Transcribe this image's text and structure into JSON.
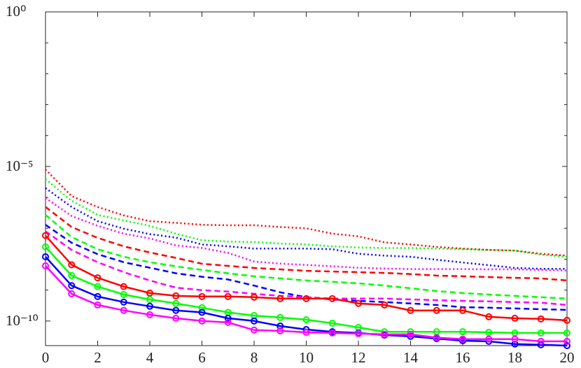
{
  "chart_data": {
    "type": "line",
    "scale_y": "log",
    "grid": false,
    "x": [
      0,
      1,
      2,
      3,
      4,
      5,
      6,
      7,
      8,
      9,
      10,
      11,
      12,
      13,
      14,
      15,
      16,
      17,
      18,
      19,
      20
    ],
    "xlim": [
      0,
      20
    ],
    "xticks": [
      0,
      2,
      4,
      6,
      8,
      10,
      12,
      14,
      16,
      18,
      20
    ],
    "ylim": [
      1.6e-11,
      1
    ],
    "yticks": [
      {
        "value": 1,
        "label": "10⁰"
      },
      {
        "value": 1e-05,
        "label": "10⁻⁵"
      },
      {
        "value": 1e-10,
        "label": "10⁻¹⁰"
      }
    ],
    "yminorticks": [
      0.1,
      0.01,
      0.001,
      0.0001,
      1e-06,
      1e-07,
      1e-08,
      1e-09
    ],
    "series": [
      {
        "color": "#ff0000",
        "style": "dotted",
        "values": [
          8e-06,
          1.1e-06,
          4.9e-07,
          2.6e-07,
          1.7e-07,
          1.5e-07,
          1.3e-07,
          1.25e-07,
          1.25e-07,
          1.1e-07,
          1e-07,
          6.7e-08,
          5.5e-08,
          3.5e-08,
          3e-08,
          2.5e-08,
          2.2e-08,
          2e-08,
          1.9e-08,
          1.5e-08,
          1.3e-08
        ]
      },
      {
        "color": "#00ff00",
        "style": "dotted",
        "values": [
          3.9e-06,
          7.8e-07,
          2.7e-07,
          1.8e-07,
          1.2e-07,
          6.7e-08,
          4.1e-08,
          3.7e-08,
          3.6e-08,
          3.2e-08,
          3e-08,
          2.6e-08,
          2.4e-08,
          2.3e-08,
          2.3e-08,
          2.2e-08,
          2.1e-08,
          2e-08,
          1.9e-08,
          1.4e-08,
          1.2e-08
        ]
      },
      {
        "color": "#0000ff",
        "style": "dotted",
        "values": [
          2e-06,
          4.9e-07,
          1.7e-07,
          9.7e-08,
          6.5e-08,
          5e-08,
          3e-08,
          2.6e-08,
          2.2e-08,
          2.2e-08,
          2.2e-08,
          2.1e-08,
          1.5e-08,
          1.3e-08,
          1.2e-08,
          9.6e-09,
          7.8e-09,
          6.4e-09,
          5.2e-09,
          4.9e-09,
          4.9e-09
        ]
      },
      {
        "color": "#ff00ff",
        "style": "dotted",
        "values": [
          9.6e-07,
          2.5e-07,
          1.2e-07,
          6.7e-08,
          4.7e-08,
          2.8e-08,
          2.3e-08,
          1.6e-08,
          8.4e-09,
          7.2e-09,
          6.5e-09,
          5.9e-09,
          5.3e-09,
          5e-09,
          4.8e-09,
          4.8e-09,
          4.8e-09,
          4.7e-09,
          4.7e-09,
          4.5e-09,
          4.3e-09
        ]
      },
      {
        "color": "#ff0000",
        "style": "dashed",
        "values": [
          4.9e-07,
          1.1e-07,
          4.9e-08,
          2.6e-08,
          1.65e-08,
          1.1e-08,
          7.1e-09,
          6.1e-09,
          5.2e-09,
          4.7e-09,
          4.2e-09,
          4e-09,
          3.8e-09,
          3.6e-09,
          3.3e-09,
          2.95e-09,
          2.8e-09,
          2.65e-09,
          2.5e-09,
          2.4e-09,
          2.05e-09
        ]
      },
      {
        "color": "#00ff00",
        "style": "dashed",
        "values": [
          2.7e-07,
          5.2e-08,
          2.1e-08,
          1.2e-08,
          8e-09,
          5.9e-09,
          4.5e-09,
          3.5e-09,
          2.8e-09,
          2.4e-09,
          2.05e-09,
          1.85e-09,
          1.65e-09,
          1.4e-09,
          1.15e-09,
          9.3e-10,
          8e-10,
          7.2e-10,
          6.5e-10,
          5.9e-10,
          5.3e-10
        ]
      },
      {
        "color": "#0000ff",
        "style": "dashed",
        "values": [
          1.3e-07,
          3.4e-08,
          1.45e-08,
          8e-09,
          5.3e-09,
          3.5e-09,
          2.7e-09,
          2.2e-09,
          1.4e-09,
          8.5e-10,
          5.9e-10,
          5e-10,
          4.5e-10,
          4.1e-10,
          3.7e-10,
          3.3e-10,
          2.8e-10,
          2.7e-10,
          2.55e-10,
          2.4e-10,
          2.3e-10
        ]
      },
      {
        "color": "#ff00ff",
        "style": "dashed",
        "values": [
          8e-08,
          2e-08,
          8e-09,
          3.8e-09,
          2.05e-09,
          1.2e-09,
          1e-09,
          9e-10,
          7.6e-10,
          6.5e-10,
          5.9e-10,
          5.3e-10,
          5.3e-10,
          5.3e-10,
          5e-10,
          4.7e-10,
          4.5e-10,
          4.3e-10,
          4.1e-10,
          3.9e-10,
          3.3e-10
        ]
      },
      {
        "color": "#ff0000",
        "style": "solid",
        "marker": "circle",
        "values": [
          5.8e-08,
          6.6e-09,
          2.5e-09,
          1.3e-09,
          8e-10,
          6.5e-10,
          6.2e-10,
          6.2e-10,
          5.9e-10,
          5.3e-10,
          5.3e-10,
          5.3e-10,
          3.7e-10,
          3.3e-10,
          2.2e-10,
          2.2e-10,
          2.2e-10,
          1.37e-10,
          1.23e-10,
          1.17e-10,
          1.05e-10
        ]
      },
      {
        "color": "#00ff00",
        "style": "solid",
        "marker": "circle",
        "values": [
          2.5e-08,
          2.95e-09,
          1.3e-09,
          7.2e-10,
          5e-10,
          3.7e-10,
          2.7e-10,
          1.9e-10,
          1.5e-10,
          1.3e-10,
          1.1e-10,
          8.5e-11,
          6.2e-11,
          4.5e-11,
          4.5e-11,
          4.5e-11,
          4.5e-11,
          4.3e-11,
          4.1e-11,
          4.1e-11,
          4.1e-11
        ]
      },
      {
        "color": "#0000ff",
        "style": "solid",
        "marker": "circle",
        "values": [
          1.2e-08,
          1.4e-09,
          6.2e-10,
          4.1e-10,
          3e-10,
          2.2e-10,
          1.9e-10,
          1.23e-10,
          1e-10,
          6.9e-11,
          5.3e-11,
          4.5e-11,
          4.1e-11,
          3.5e-11,
          3.2e-11,
          2.7e-11,
          2.3e-11,
          2.2e-11,
          1.8e-11,
          1.7e-11,
          1.6e-11
        ]
      },
      {
        "color": "#ff00ff",
        "style": "solid",
        "marker": "circle",
        "values": [
          6.1e-09,
          7.6e-10,
          3.3e-10,
          2.2e-10,
          1.6e-10,
          1.23e-10,
          1e-10,
          9e-11,
          5.1e-11,
          4.8e-11,
          4.3e-11,
          4.1e-11,
          3.9e-11,
          3.7e-11,
          3.7e-11,
          2.9e-11,
          2.6e-11,
          2.6e-11,
          2.6e-11,
          2.2e-11,
          2.2e-11
        ]
      }
    ]
  }
}
